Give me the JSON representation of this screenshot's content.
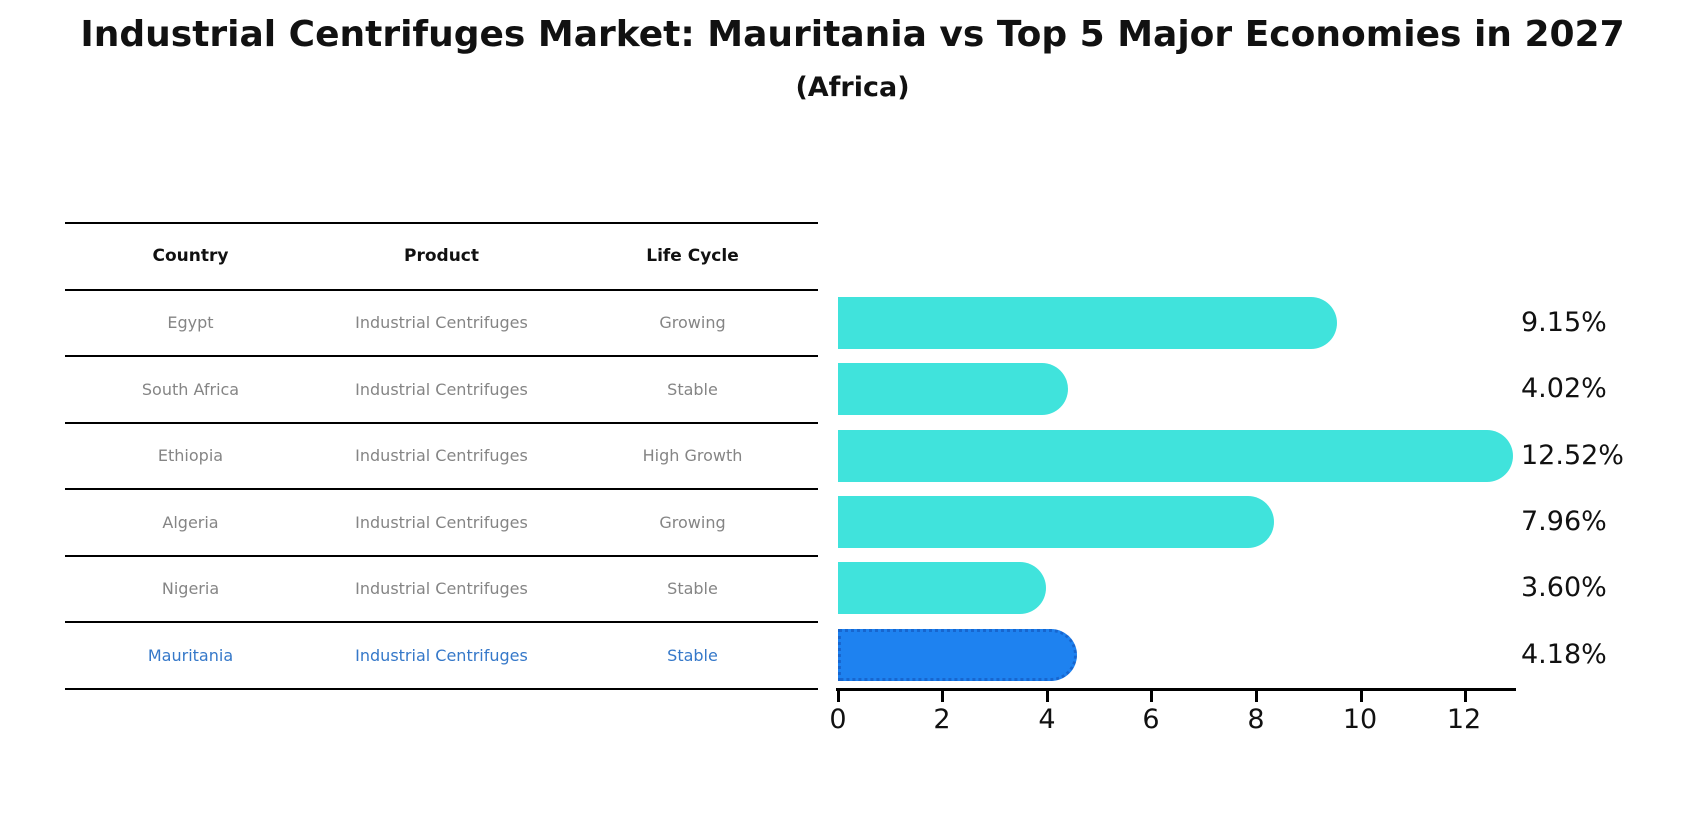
{
  "title": "Industrial Centrifuges Market: Mauritania vs Top 5 Major Economies in 2027",
  "subtitle": "(Africa)",
  "table": {
    "headers": [
      "Country",
      "Product",
      "Life Cycle"
    ],
    "rows": [
      {
        "country": "Egypt",
        "product": "Industrial Centrifuges",
        "life_cycle": "Growing",
        "highlight": false
      },
      {
        "country": "South Africa",
        "product": "Industrial Centrifuges",
        "life_cycle": "Stable",
        "highlight": false
      },
      {
        "country": "Ethiopia",
        "product": "Industrial Centrifuges",
        "life_cycle": "High Growth",
        "highlight": false
      },
      {
        "country": "Algeria",
        "product": "Industrial Centrifuges",
        "life_cycle": "Growing",
        "highlight": false
      },
      {
        "country": "Nigeria",
        "product": "Industrial Centrifuges",
        "life_cycle": "Stable",
        "highlight": false
      },
      {
        "country": "Mauritania",
        "product": "Industrial Centrifuges",
        "life_cycle": "Stable",
        "highlight": true
      }
    ]
  },
  "chart_data": {
    "type": "bar",
    "orientation": "horizontal",
    "categories": [
      "Egypt",
      "South Africa",
      "Ethiopia",
      "Algeria",
      "Nigeria",
      "Mauritania"
    ],
    "values": [
      9.15,
      4.02,
      12.52,
      7.96,
      3.6,
      4.18
    ],
    "value_labels": [
      "9.15%",
      "4.02%",
      "12.52%",
      "7.96%",
      "3.60%",
      "4.18%"
    ],
    "x_ticks": [
      "0",
      "2",
      "4",
      "6",
      "8",
      "10",
      "12"
    ],
    "xlim": [
      0,
      13
    ],
    "grid": false,
    "legend": "none",
    "highlight_index": 5
  },
  "colors": {
    "bar": "#40e3dc",
    "highlight_bar": "#1e82f0",
    "highlight_border": "#1766cf",
    "highlight_text": "#3578c9",
    "text_gray": "#858585",
    "line": "#000000"
  }
}
